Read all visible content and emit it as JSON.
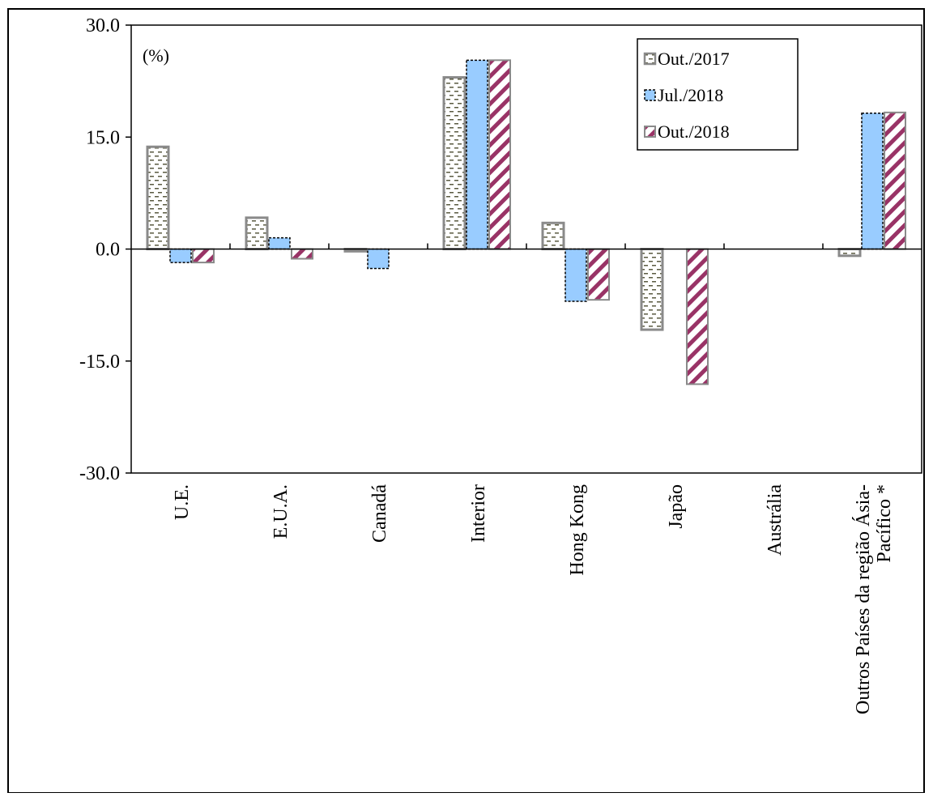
{
  "chart_data": {
    "type": "bar",
    "unit_label": "(%)",
    "categories": [
      "U.E.",
      "E.U.A.",
      "Canadá",
      "Interior",
      "Hong Kong",
      "Japão",
      "Austrália",
      "Outros Países da região Ásia-Pacífico *"
    ],
    "category_label_lines": [
      [
        "U.E."
      ],
      [
        "E.U.A."
      ],
      [
        "Canadá"
      ],
      [
        "Interior"
      ],
      [
        "Hong Kong"
      ],
      [
        "Japão"
      ],
      [
        "Austrália"
      ],
      [
        "Outros Países da região Ásia-",
        "Pacífico *"
      ]
    ],
    "series": [
      {
        "name": "Out./2017",
        "pattern": "dashes",
        "color": "#c8c8b4",
        "values": [
          13.7,
          4.2,
          -0.3,
          23.0,
          3.5,
          -10.8,
          0.0,
          -0.9
        ]
      },
      {
        "name": "Jul./2018",
        "pattern": "solid",
        "color": "#99ccff",
        "values": [
          -1.8,
          1.5,
          -2.6,
          25.3,
          -7.0,
          0.0,
          0.0,
          18.2
        ]
      },
      {
        "name": "Out./2018",
        "pattern": "diagonal",
        "color": "#993366",
        "values": [
          -1.8,
          -1.3,
          0.0,
          25.3,
          -6.8,
          -18.1,
          0.0,
          18.3
        ]
      }
    ],
    "ylim": [
      -30.0,
      30.0
    ],
    "yticks": [
      "30.0",
      "15.0",
      "0.0",
      "-15.0",
      "-30.0"
    ],
    "ytick_values": [
      30,
      15,
      0,
      -15,
      -30
    ],
    "legend_position": "top-right",
    "grid": false,
    "title": "",
    "xlabel": "",
    "ylabel": ""
  }
}
